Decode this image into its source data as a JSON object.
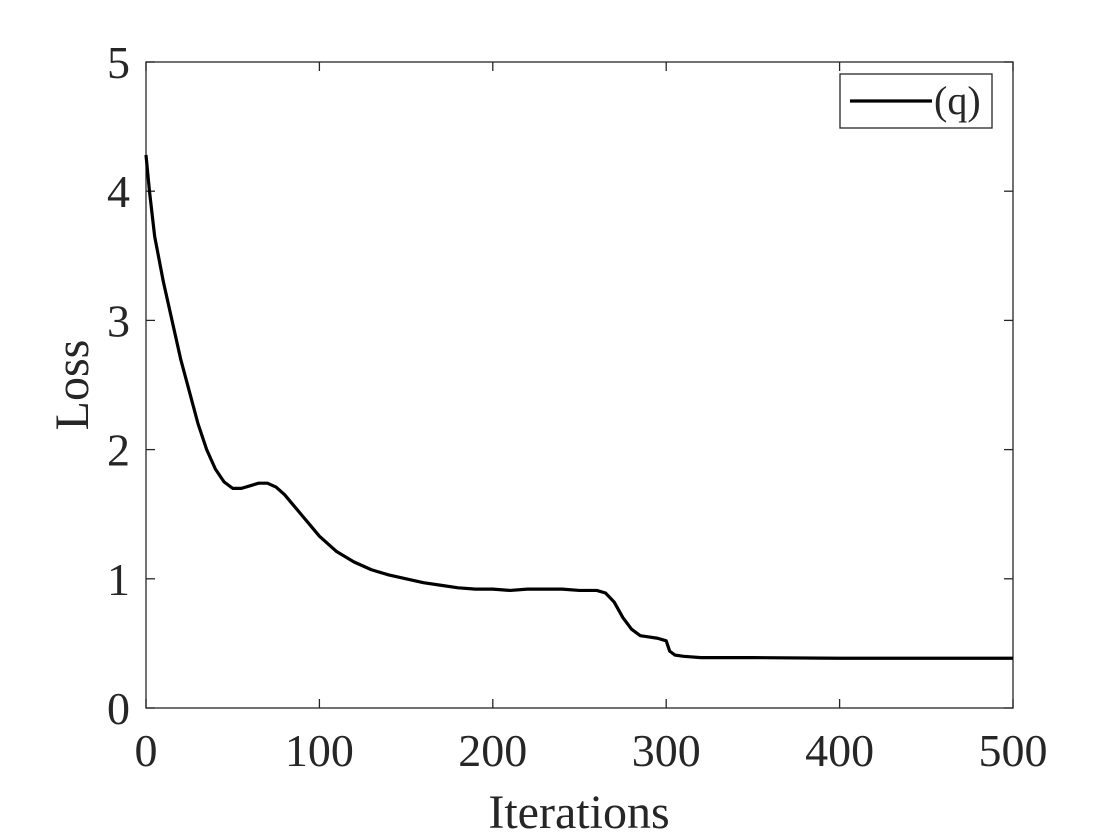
{
  "chart_data": {
    "type": "line",
    "x_label": "Iterations",
    "y_label": "Loss",
    "x": [
      0,
      2,
      5,
      10,
      15,
      20,
      25,
      30,
      35,
      40,
      45,
      50,
      55,
      60,
      65,
      70,
      75,
      80,
      85,
      90,
      95,
      100,
      110,
      120,
      130,
      140,
      150,
      160,
      170,
      180,
      190,
      200,
      210,
      220,
      230,
      240,
      250,
      260,
      265,
      270,
      275,
      280,
      285,
      290,
      295,
      300,
      302,
      305,
      310,
      320,
      350,
      400,
      450,
      500
    ],
    "series": [
      {
        "name": "(q)",
        "color": "#000000",
        "values": [
          4.28,
          4.0,
          3.65,
          3.3,
          3.0,
          2.7,
          2.45,
          2.2,
          2.0,
          1.85,
          1.75,
          1.7,
          1.7,
          1.72,
          1.74,
          1.74,
          1.71,
          1.65,
          1.57,
          1.49,
          1.41,
          1.33,
          1.21,
          1.13,
          1.07,
          1.03,
          1.0,
          0.97,
          0.95,
          0.93,
          0.92,
          0.92,
          0.91,
          0.92,
          0.92,
          0.92,
          0.91,
          0.91,
          0.89,
          0.82,
          0.7,
          0.61,
          0.56,
          0.55,
          0.54,
          0.52,
          0.44,
          0.41,
          0.4,
          0.39,
          0.39,
          0.385,
          0.385,
          0.385
        ]
      }
    ],
    "xlim": [
      0,
      500
    ],
    "xticks": [
      0,
      100,
      200,
      300,
      400,
      500
    ],
    "ylim": [
      0,
      5
    ],
    "yticks": [
      0,
      1,
      2,
      3,
      4,
      5
    ],
    "legend": "upper right",
    "grid": false
  }
}
